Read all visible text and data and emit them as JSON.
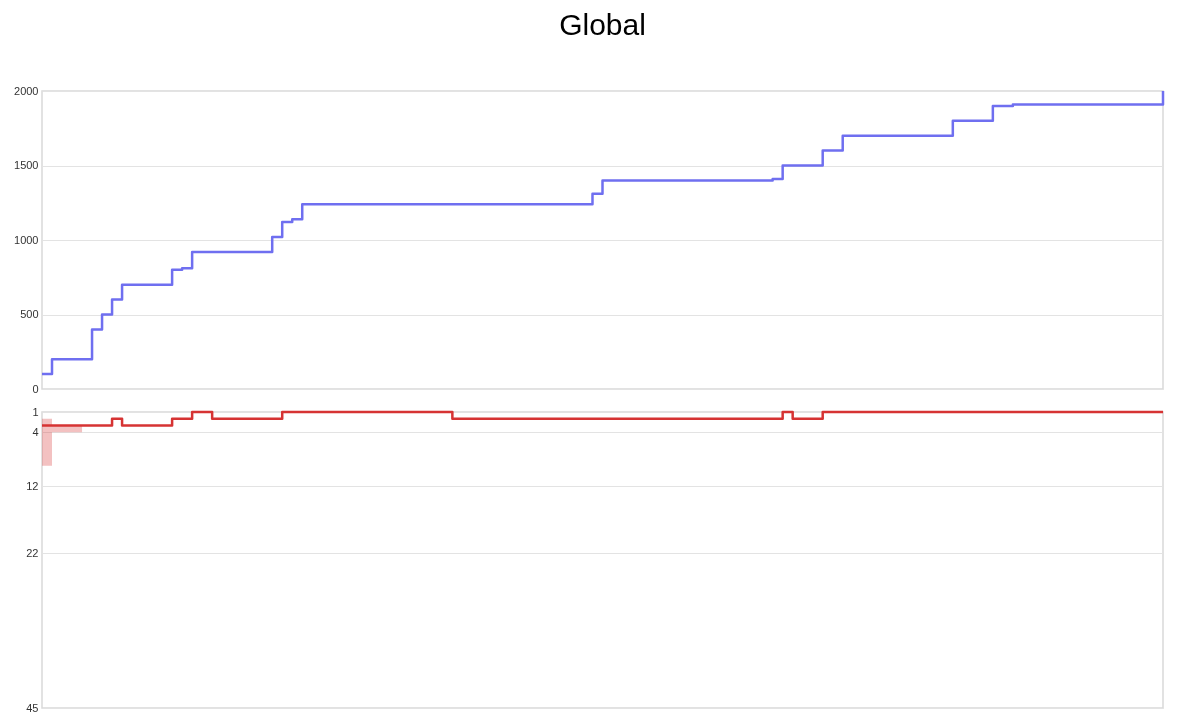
{
  "chart_data": [
    {
      "type": "step",
      "title": "Global",
      "categories": [
        null,
        null,
        null,
        null,
        null,
        null,
        null,
        null,
        null,
        null,
        null,
        null,
        null,
        null,
        null,
        null,
        null,
        null,
        null,
        null,
        null,
        null,
        null,
        null,
        null,
        null,
        null,
        null,
        null,
        null,
        null,
        null,
        null,
        null,
        null,
        null,
        null,
        null,
        null,
        null,
        null,
        null,
        null,
        null,
        null,
        null,
        null,
        null,
        null,
        null,
        null,
        null,
        null,
        null,
        null,
        null,
        null,
        null,
        null,
        null,
        null,
        null,
        null,
        null,
        null,
        null,
        null,
        null,
        null,
        null,
        null,
        null,
        null,
        null,
        null,
        null,
        null,
        null,
        null,
        null,
        null,
        null,
        null,
        null,
        null,
        null,
        null,
        null,
        null,
        null,
        null,
        null,
        null,
        null,
        null,
        null,
        null,
        null,
        null,
        null,
        null,
        null,
        null,
        null,
        null,
        null,
        null,
        null,
        null,
        null,
        null,
        null,
        null
      ],
      "series": [
        {
          "color": "#6f6ff0",
          "values": [
            100,
            200,
            200,
            200,
            200,
            400,
            500,
            600,
            700,
            700,
            700,
            700,
            700,
            800,
            810,
            920,
            920,
            920,
            920,
            920,
            920,
            920,
            920,
            1020,
            1120,
            1140,
            1240,
            1240,
            1240,
            1240,
            1240,
            1240,
            1240,
            1240,
            1240,
            1240,
            1240,
            1240,
            1240,
            1240,
            1240,
            1240,
            1240,
            1240,
            1240,
            1240,
            1240,
            1240,
            1240,
            1240,
            1240,
            1240,
            1240,
            1240,
            1240,
            1310,
            1400,
            1400,
            1400,
            1400,
            1400,
            1400,
            1400,
            1400,
            1400,
            1400,
            1400,
            1400,
            1400,
            1400,
            1400,
            1400,
            1400,
            1410,
            1500,
            1500,
            1500,
            1500,
            1600,
            1600,
            1700,
            1700,
            1700,
            1700,
            1700,
            1700,
            1700,
            1700,
            1700,
            1700,
            1700,
            1800,
            1800,
            1800,
            1800,
            1900,
            1900,
            1910,
            1910,
            1910,
            1910,
            1910,
            1910,
            1910,
            1910,
            1910,
            1910,
            1910,
            1910,
            1910,
            1910,
            1910,
            2000
          ]
        }
      ],
      "ylim": [
        0,
        2000
      ],
      "yticks": [
        0,
        500,
        1000,
        1500,
        2000
      ],
      "grid": "y",
      "tick_labels": "y"
    },
    {
      "type": "step",
      "categories": [
        null,
        null,
        null,
        null,
        null,
        null,
        null,
        null,
        null,
        null,
        null,
        null,
        null,
        null,
        null,
        null,
        null,
        null,
        null,
        null,
        null,
        null,
        null,
        null,
        null,
        null,
        null,
        null,
        null,
        null,
        null,
        null,
        null,
        null,
        null,
        null,
        null,
        null,
        null,
        null,
        null,
        null,
        null,
        null,
        null,
        null,
        null,
        null,
        null,
        null,
        null,
        null,
        null,
        null,
        null,
        null,
        null,
        null,
        null,
        null,
        null,
        null,
        null,
        null,
        null,
        null,
        null,
        null,
        null,
        null,
        null,
        null,
        null,
        null,
        null,
        null,
        null,
        null,
        null,
        null,
        null,
        null,
        null,
        null,
        null,
        null,
        null,
        null,
        null,
        null,
        null,
        null,
        null,
        null,
        null,
        null,
        null,
        null,
        null,
        null,
        null,
        null,
        null,
        null,
        null,
        null,
        null,
        null,
        null,
        null,
        null,
        null,
        null
      ],
      "series": [
        {
          "color": "#d63333",
          "values": [
            3,
            3,
            3,
            3,
            3,
            3,
            3,
            2,
            3,
            3,
            3,
            3,
            3,
            2,
            2,
            1,
            1,
            2,
            2,
            2,
            2,
            2,
            2,
            2,
            1,
            1,
            1,
            1,
            1,
            1,
            1,
            1,
            1,
            1,
            1,
            1,
            1,
            1,
            1,
            1,
            1,
            2,
            2,
            2,
            2,
            2,
            2,
            2,
            2,
            2,
            2,
            2,
            2,
            2,
            2,
            2,
            2,
            2,
            2,
            2,
            2,
            2,
            2,
            2,
            2,
            2,
            2,
            2,
            2,
            2,
            2,
            2,
            2,
            2,
            1,
            2,
            2,
            2,
            1,
            1,
            1,
            1,
            1,
            1,
            1,
            1,
            1,
            1,
            1,
            1,
            1,
            1,
            1,
            1,
            1,
            1,
            1,
            1,
            1,
            1,
            1,
            1,
            1,
            1,
            1,
            1,
            1,
            1,
            1,
            1,
            1,
            1,
            1
          ],
          "lower": [
            2,
            3,
            3,
            3,
            3,
            null,
            null,
            null,
            null,
            null,
            null,
            null,
            null,
            null,
            null,
            null,
            null,
            null,
            null,
            null,
            null,
            null,
            null,
            null,
            null,
            null,
            null,
            null,
            null,
            null,
            null,
            null,
            null,
            null,
            null,
            null,
            null,
            null,
            null,
            null,
            null,
            null,
            null,
            null,
            null,
            null,
            null,
            null,
            null,
            null,
            null,
            null,
            null,
            null,
            null,
            null,
            null,
            null,
            null,
            null,
            null,
            null,
            null,
            null,
            null,
            null,
            null,
            null,
            null,
            null,
            null,
            null,
            null,
            null,
            null,
            null,
            null,
            null,
            null,
            null,
            null,
            null,
            null,
            null,
            null,
            null,
            null,
            null,
            null,
            null,
            null,
            null,
            null,
            null,
            null,
            null,
            null,
            null,
            null,
            null,
            null,
            null,
            null,
            null,
            null,
            null,
            null,
            null,
            null,
            null,
            null,
            null,
            null
          ],
          "upper": [
            9,
            4,
            4,
            4,
            4,
            null,
            null,
            null,
            null,
            null,
            null,
            null,
            null,
            null,
            null,
            null,
            null,
            null,
            null,
            null,
            null,
            null,
            null,
            null,
            null,
            null,
            null,
            null,
            null,
            null,
            null,
            null,
            null,
            null,
            null,
            null,
            null,
            null,
            null,
            null,
            null,
            null,
            null,
            null,
            null,
            null,
            null,
            null,
            null,
            null,
            null,
            null,
            null,
            null,
            null,
            null,
            null,
            null,
            null,
            null,
            null,
            null,
            null,
            null,
            null,
            null,
            null,
            null,
            null,
            null,
            null,
            null,
            null,
            null,
            null,
            null,
            null,
            null,
            null,
            null,
            null,
            null,
            null,
            null,
            null,
            null,
            null,
            null,
            null,
            null,
            null,
            null,
            null,
            null,
            null,
            null,
            null,
            null,
            null,
            null,
            null,
            null,
            null,
            null,
            null,
            null,
            null,
            null,
            null,
            null,
            null,
            null,
            null
          ]
        }
      ],
      "ylim": [
        45,
        1
      ],
      "yticks": [
        1,
        4,
        12,
        22,
        45
      ],
      "grid": "y",
      "tick_labels": "y"
    }
  ]
}
